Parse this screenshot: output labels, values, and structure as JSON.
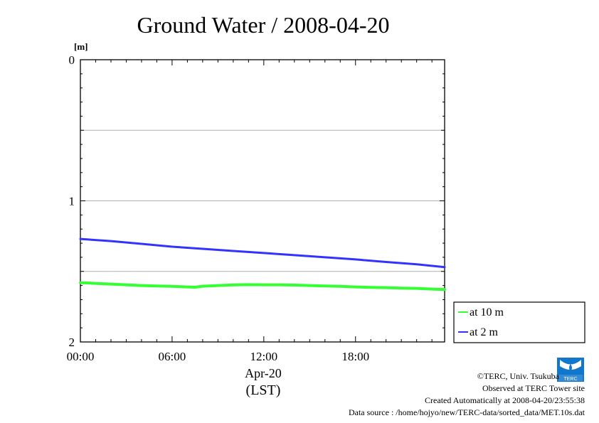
{
  "chart_data": {
    "type": "line",
    "title": "Ground Water / 2008-04-20",
    "ylabel": "[m]",
    "xlabel_date": "Apr-20",
    "xlabel_tz": "(LST)",
    "x_unit": "hours",
    "xlim": [
      0,
      23.83
    ],
    "ylim": [
      0,
      2
    ],
    "y_inverted": true,
    "y_ticks": [
      "0",
      "1",
      "2"
    ],
    "y_tick_values": [
      0,
      1,
      2
    ],
    "y_grid": [
      0.5,
      1,
      1.5
    ],
    "x_ticks": [
      "00:00",
      "06:00",
      "12:00",
      "18:00"
    ],
    "x_tick_values": [
      0,
      6,
      12,
      18
    ],
    "legend_position": "right",
    "series": [
      {
        "name": "at 10 m",
        "color": "#33ff33",
        "x": [
          0,
          1,
          2,
          3,
          4,
          5,
          6,
          7,
          7.5,
          8,
          9,
          10,
          11,
          12,
          13,
          14,
          15,
          16,
          17,
          18,
          19,
          20,
          21,
          22,
          23,
          23.83
        ],
        "values": [
          1.58,
          1.585,
          1.59,
          1.595,
          1.6,
          1.603,
          1.606,
          1.61,
          1.612,
          1.605,
          1.6,
          1.596,
          1.594,
          1.595,
          1.595,
          1.597,
          1.6,
          1.603,
          1.606,
          1.61,
          1.613,
          1.615,
          1.618,
          1.62,
          1.625,
          1.628
        ]
      },
      {
        "name": "at 2 m",
        "color": "#3333ff",
        "x": [
          0,
          2,
          4,
          6,
          8,
          10,
          12,
          14,
          16,
          18,
          20,
          22,
          23.83
        ],
        "values": [
          1.27,
          1.285,
          1.305,
          1.325,
          1.34,
          1.355,
          1.37,
          1.385,
          1.4,
          1.415,
          1.433,
          1.45,
          1.47
        ]
      }
    ]
  },
  "footer": {
    "copyright": "©TERC, Univ. Tsukuba",
    "observed": "Observed at TERC Tower site",
    "created": "Created Automatically at 2008-04-20/23:55:38",
    "source": "Data source : /home/hojyo/new/TERC-data/sorted_data/MET.10s.dat"
  },
  "logo": {
    "text": "TERC",
    "color": "#1177cc"
  }
}
